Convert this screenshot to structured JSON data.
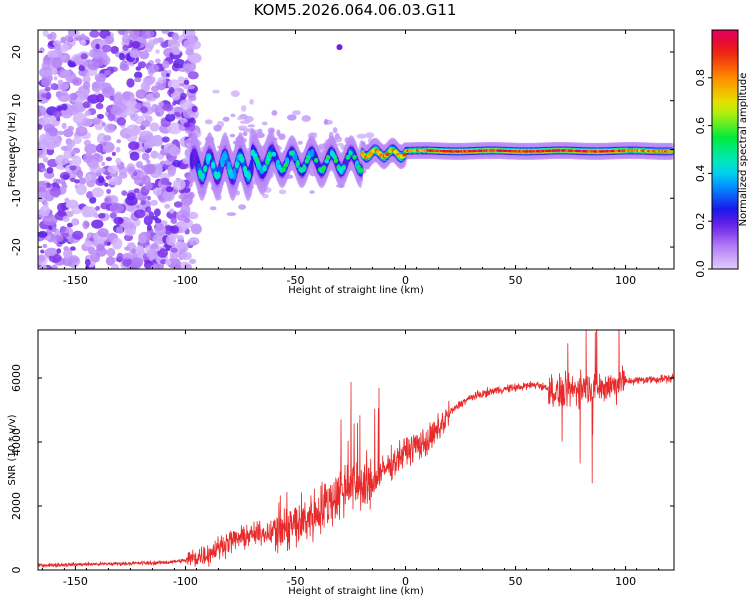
{
  "figure": {
    "title": "KOM5.2026.064.06.03.G11"
  },
  "chart_data": [
    {
      "type": "heatmap",
      "name": "spectrogram",
      "xlabel": "Height of straight line (km)",
      "ylabel": "Frequency (Hz)",
      "xlim": [
        -167,
        122
      ],
      "ylim": [
        -24.5,
        24.5
      ],
      "xticks": [
        -150,
        -100,
        -50,
        0,
        50,
        100
      ],
      "yticks": [
        -20,
        -10,
        0,
        10,
        20
      ],
      "colorbar": {
        "label": "Normalized spectral amplitude",
        "range": [
          0.0,
          1.0
        ],
        "ticks": [
          "0.0",
          "0.2",
          "0.4",
          "0.6",
          "0.8"
        ]
      },
      "description_of_signal": "scattered noise below -95 km; tone near 0 Hz from about -95 km to 120 km, narrowing and strengthening above 0 km"
    },
    {
      "type": "line",
      "name": "snr",
      "xlabel": "Height of straight line (km)",
      "ylabel": "SNR (10 * v/v)",
      "xlim": [
        -167,
        122
      ],
      "ylim": [
        0,
        7500
      ],
      "xticks": [
        -150,
        -100,
        -50,
        0,
        50,
        100
      ],
      "yticks": [
        0,
        2000,
        4000,
        6000
      ],
      "color": "#e82a2a",
      "series": [
        {
          "name": "SNR",
          "x": [
            -167,
            -150,
            -130,
            -110,
            -100,
            -90,
            -80,
            -70,
            -60,
            -50,
            -40,
            -30,
            -25,
            -20,
            -15,
            -10,
            -5,
            0,
            5,
            10,
            15,
            20,
            25,
            30,
            40,
            50,
            60,
            70,
            80,
            90,
            100,
            110,
            122
          ],
          "values": [
            150,
            170,
            200,
            230,
            300,
            500,
            900,
            1100,
            1200,
            1400,
            1800,
            2400,
            2700,
            2500,
            2700,
            3100,
            3400,
            3700,
            3900,
            4000,
            4400,
            4900,
            5200,
            5400,
            5600,
            5700,
            5800,
            5500,
            5700,
            5700,
            5900,
            5950,
            6000
          ]
        }
      ]
    }
  ]
}
